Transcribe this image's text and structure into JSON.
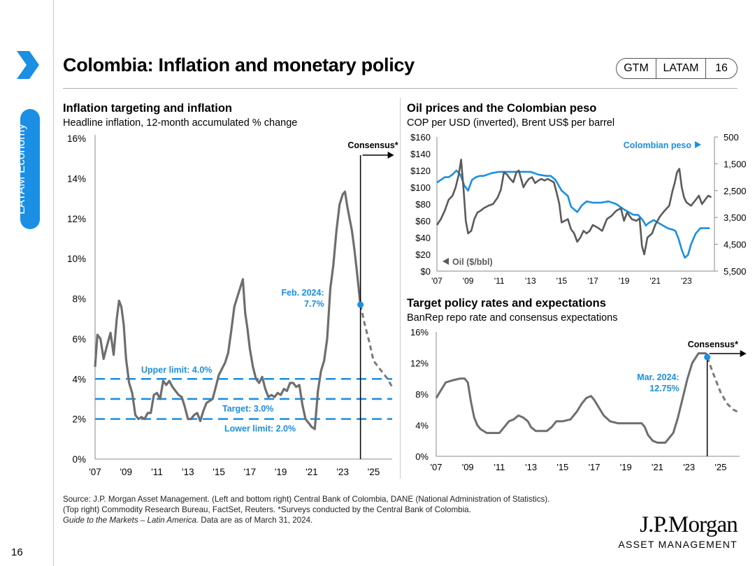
{
  "sidebar": {
    "label": "LATAM Economy"
  },
  "header": {
    "title": "Colombia: Inflation and monetary policy",
    "badge": [
      "GTM",
      "LATAM",
      "16"
    ]
  },
  "colors": {
    "accent": "#1a8fe3",
    "series_gray": "#6e6e6e",
    "series_blue": "#1a8fe3"
  },
  "page_number": "16",
  "source_lines": [
    "Source: J.P. Morgan Asset Management. (Left and bottom right) Central Bank of Colombia, DANE (National Administration of Statistics).",
    "(Top right) Commodity Research Bureau, FactSet, Reuters. *Surveys conducted by the Central Bank of Colombia."
  ],
  "source_italic": "Guide to the Markets – Latin America.",
  "source_tail": " Data are as of March 31, 2024.",
  "logo": {
    "line1": "J.P.Morgan",
    "line2": "ASSET MANAGEMENT"
  },
  "chart_data": [
    {
      "type": "line",
      "title": "Inflation targeting and inflation",
      "subtitle": "Headline inflation, 12-month accumulated % change",
      "ylim": [
        0,
        16
      ],
      "xlim": [
        2007,
        2026.2
      ],
      "yticks": [
        0,
        2,
        4,
        6,
        8,
        10,
        12,
        14,
        16
      ],
      "ytick_labels": [
        "0%",
        "2%",
        "4%",
        "6%",
        "8%",
        "10%",
        "12%",
        "14%",
        "16%"
      ],
      "xticks": [
        2007,
        2009,
        2011,
        2013,
        2015,
        2017,
        2019,
        2021,
        2023,
        2025
      ],
      "xtick_labels": [
        "'07",
        "'09",
        "'11",
        "'13",
        "'15",
        "'17",
        "'19",
        "'21",
        "'23",
        "'25"
      ],
      "series": [
        {
          "name": "Headline inflation",
          "x": [
            2007.0,
            2007.15,
            2007.35,
            2007.55,
            2007.75,
            2008.0,
            2008.2,
            2008.4,
            2008.55,
            2008.7,
            2008.85,
            2009.0,
            2009.2,
            2009.4,
            2009.6,
            2009.8,
            2010.0,
            2010.2,
            2010.4,
            2010.6,
            2010.8,
            2011.0,
            2011.2,
            2011.4,
            2011.6,
            2011.8,
            2012.0,
            2012.2,
            2012.4,
            2012.6,
            2012.8,
            2013.0,
            2013.2,
            2013.4,
            2013.6,
            2013.8,
            2014.0,
            2014.2,
            2014.4,
            2014.6,
            2014.8,
            2015.0,
            2015.2,
            2015.4,
            2015.6,
            2015.8,
            2016.0,
            2016.2,
            2016.4,
            2016.55,
            2016.7,
            2016.85,
            2017.0,
            2017.2,
            2017.4,
            2017.6,
            2017.8,
            2018.0,
            2018.2,
            2018.4,
            2018.6,
            2018.8,
            2019.0,
            2019.2,
            2019.4,
            2019.6,
            2019.8,
            2020.0,
            2020.2,
            2020.4,
            2020.6,
            2020.8,
            2021.0,
            2021.2,
            2021.4,
            2021.6,
            2021.8,
            2022.0,
            2022.2,
            2022.4,
            2022.6,
            2022.8,
            2023.0,
            2023.15,
            2023.3,
            2023.45,
            2023.6,
            2023.75,
            2023.9,
            2024.05,
            2024.15
          ],
          "y": [
            4.6,
            6.2,
            6.0,
            5.0,
            5.6,
            6.3,
            5.2,
            7.0,
            7.9,
            7.6,
            6.7,
            5.0,
            3.8,
            3.3,
            2.2,
            2.0,
            2.1,
            2.0,
            2.3,
            2.3,
            3.2,
            3.3,
            3.0,
            3.9,
            3.7,
            3.9,
            3.6,
            3.4,
            3.2,
            3.1,
            2.6,
            2.0,
            2.0,
            2.2,
            2.3,
            1.9,
            2.4,
            2.8,
            2.9,
            3.0,
            3.6,
            4.2,
            4.5,
            4.8,
            5.3,
            6.4,
            7.6,
            8.1,
            8.6,
            8.97,
            7.3,
            6.5,
            5.5,
            4.6,
            4.0,
            3.8,
            4.1,
            3.5,
            3.1,
            3.2,
            3.1,
            3.3,
            3.2,
            3.5,
            3.4,
            3.8,
            3.8,
            3.6,
            3.7,
            2.7,
            2.0,
            1.8,
            1.6,
            1.5,
            3.4,
            4.4,
            4.9,
            6.0,
            8.5,
            9.7,
            11.4,
            12.7,
            13.2,
            13.34,
            12.6,
            12.0,
            11.4,
            10.5,
            9.5,
            8.4,
            7.7
          ]
        },
        {
          "name": "Consensus",
          "dashed": true,
          "x": [
            2024.15,
            2024.4,
            2024.7,
            2025.0,
            2025.3,
            2025.6,
            2025.9,
            2026.2
          ],
          "y": [
            7.7,
            6.8,
            5.9,
            4.9,
            4.6,
            4.3,
            4.0,
            3.6
          ]
        }
      ],
      "reference_lines": [
        {
          "label": "Upper limit: 4.0%",
          "value": 4.0
        },
        {
          "label": "Target: 3.0%",
          "value": 3.0
        },
        {
          "label": "Lower limit: 2.0%",
          "value": 2.0
        }
      ],
      "annotations": [
        {
          "text": "Feb. 2024:",
          "text2": "7.7%",
          "x": 2024.15,
          "y": 7.7
        },
        {
          "text": "Consensus*",
          "x": 2024.15
        }
      ]
    },
    {
      "type": "line",
      "title": "Oil prices and the Colombian peso",
      "subtitle": "COP per USD (inverted), Brent US$ per barrel",
      "xlim": [
        2007,
        2024.8
      ],
      "xticks": [
        2007,
        2009,
        2011,
        2013,
        2015,
        2017,
        2019,
        2021,
        2023
      ],
      "xtick_labels": [
        "'07",
        "'09",
        "'11",
        "'13",
        "'15",
        "'17",
        "'19",
        "'21",
        "'23"
      ],
      "ylim_left": [
        0,
        160
      ],
      "yticks_left_labels": [
        "$0",
        "$20",
        "$40",
        "$60",
        "$80",
        "$100",
        "$120",
        "$140",
        "$160"
      ],
      "ylim_right": [
        5500,
        500
      ],
      "yticks_right_labels": [
        "500",
        "1,500",
        "2,500",
        "3,500",
        "4,500",
        "5,500"
      ],
      "series": [
        {
          "name": "Oil ($/bbl)",
          "axis": "left",
          "x": [
            2007.0,
            2007.25,
            2007.5,
            2007.75,
            2008.0,
            2008.2,
            2008.4,
            2008.55,
            2008.7,
            2008.85,
            2009.0,
            2009.2,
            2009.4,
            2009.6,
            2009.8,
            2010.0,
            2010.3,
            2010.6,
            2010.9,
            2011.1,
            2011.3,
            2011.5,
            2011.7,
            2011.9,
            2012.1,
            2012.25,
            2012.4,
            2012.55,
            2012.7,
            2012.9,
            2013.1,
            2013.3,
            2013.5,
            2013.7,
            2013.9,
            2014.1,
            2014.3,
            2014.5,
            2014.7,
            2014.85,
            2015.0,
            2015.2,
            2015.4,
            2015.6,
            2015.8,
            2016.0,
            2016.2,
            2016.4,
            2016.6,
            2016.8,
            2017.0,
            2017.3,
            2017.6,
            2017.9,
            2018.2,
            2018.5,
            2018.8,
            2019.0,
            2019.2,
            2019.5,
            2019.8,
            2020.0,
            2020.15,
            2020.3,
            2020.5,
            2020.8,
            2021.0,
            2021.3,
            2021.6,
            2021.9,
            2022.1,
            2022.25,
            2022.4,
            2022.55,
            2022.7,
            2022.85,
            2023.0,
            2023.3,
            2023.6,
            2023.8,
            2024.0,
            2024.2,
            2024.4,
            2024.6
          ],
          "y": [
            55,
            62,
            72,
            85,
            90,
            100,
            115,
            133,
            100,
            60,
            45,
            48,
            62,
            70,
            72,
            75,
            78,
            80,
            88,
            97,
            118,
            115,
            110,
            106,
            118,
            120,
            110,
            100,
            105,
            110,
            112,
            105,
            108,
            110,
            108,
            110,
            108,
            106,
            92,
            80,
            58,
            60,
            62,
            50,
            45,
            35,
            40,
            48,
            45,
            48,
            55,
            52,
            48,
            62,
            66,
            72,
            75,
            60,
            70,
            62,
            60,
            63,
            30,
            20,
            40,
            45,
            55,
            65,
            72,
            78,
            95,
            105,
            118,
            122,
            100,
            88,
            82,
            78,
            85,
            90,
            80,
            85,
            90,
            88
          ]
        },
        {
          "name": "Colombian peso",
          "axis": "right",
          "x": [
            2007.0,
            2007.25,
            2007.5,
            2007.75,
            2008.0,
            2008.25,
            2008.5,
            2008.75,
            2009.0,
            2009.25,
            2009.5,
            2009.75,
            2010.0,
            2010.5,
            2011.0,
            2011.5,
            2012.0,
            2012.5,
            2013.0,
            2013.5,
            2014.0,
            2014.3,
            2014.6,
            2014.8,
            2015.0,
            2015.2,
            2015.4,
            2015.6,
            2015.8,
            2016.0,
            2016.3,
            2016.6,
            2017.0,
            2017.5,
            2018.0,
            2018.5,
            2019.0,
            2019.3,
            2019.6,
            2019.9,
            2020.2,
            2020.4,
            2020.6,
            2020.9,
            2021.2,
            2021.5,
            2021.8,
            2022.1,
            2022.3,
            2022.5,
            2022.7,
            2022.9,
            2023.1,
            2023.3,
            2023.6,
            2023.9,
            2024.2,
            2024.5
          ],
          "y": [
            2200,
            2100,
            2000,
            2000,
            1900,
            1750,
            1900,
            2300,
            2500,
            2100,
            2000,
            1950,
            1950,
            1850,
            1800,
            1800,
            1800,
            1800,
            1800,
            1900,
            1950,
            1950,
            2100,
            2300,
            2500,
            2600,
            2700,
            3100,
            3200,
            3300,
            3050,
            2900,
            2950,
            2950,
            2900,
            3000,
            3200,
            3300,
            3400,
            3400,
            3600,
            3800,
            3700,
            3600,
            3700,
            3800,
            3900,
            3950,
            4000,
            4300,
            4700,
            5000,
            4900,
            4500,
            4100,
            3900,
            3900,
            3900
          ]
        }
      ],
      "legend": [
        {
          "text": "Colombian peso",
          "axis": "right"
        },
        {
          "text": "Oil ($/bbl)",
          "axis": "left"
        }
      ]
    },
    {
      "type": "line",
      "title": "Target policy rates and expectations",
      "subtitle": "BanRep repo rate and consensus expectations",
      "ylim": [
        0,
        16
      ],
      "xlim": [
        2007,
        2026.2
      ],
      "yticks": [
        0,
        4,
        8,
        12,
        16
      ],
      "ytick_labels": [
        "0%",
        "4%",
        "8%",
        "12%",
        "16%"
      ],
      "xticks": [
        2007,
        2009,
        2011,
        2013,
        2015,
        2017,
        2019,
        2021,
        2023,
        2025
      ],
      "xtick_labels": [
        "'07",
        "'09",
        "'11",
        "'13",
        "'15",
        "'17",
        "'19",
        "'21",
        "'23",
        "'25"
      ],
      "series": [
        {
          "name": "BanRep repo rate",
          "x": [
            2007.0,
            2007.3,
            2007.6,
            2008.0,
            2008.5,
            2008.8,
            2009.0,
            2009.2,
            2009.4,
            2009.6,
            2009.8,
            2010.2,
            2010.6,
            2011.0,
            2011.3,
            2011.6,
            2011.9,
            2012.2,
            2012.5,
            2012.8,
            2013.0,
            2013.3,
            2013.6,
            2014.0,
            2014.3,
            2014.6,
            2015.0,
            2015.5,
            2015.9,
            2016.2,
            2016.5,
            2016.8,
            2017.0,
            2017.3,
            2017.6,
            2018.0,
            2018.5,
            2019.0,
            2019.5,
            2020.0,
            2020.2,
            2020.4,
            2020.7,
            2021.0,
            2021.5,
            2021.8,
            2022.0,
            2022.3,
            2022.6,
            2022.9,
            2023.2,
            2023.6,
            2024.05,
            2024.15
          ],
          "y": [
            7.5,
            8.5,
            9.5,
            9.75,
            10.0,
            10.0,
            9.5,
            7.0,
            5.0,
            4.0,
            3.5,
            3.0,
            3.0,
            3.0,
            3.75,
            4.5,
            4.75,
            5.25,
            5.0,
            4.5,
            3.75,
            3.25,
            3.25,
            3.25,
            3.75,
            4.5,
            4.5,
            4.75,
            5.75,
            6.75,
            7.5,
            7.75,
            7.25,
            6.25,
            5.25,
            4.5,
            4.25,
            4.25,
            4.25,
            4.25,
            3.75,
            2.75,
            2.0,
            1.75,
            1.75,
            2.5,
            3.0,
            5.0,
            7.5,
            10.0,
            12.0,
            13.25,
            13.25,
            12.75
          ]
        },
        {
          "name": "Consensus",
          "dashed": true,
          "x": [
            2024.15,
            2024.5,
            2025.0,
            2025.4,
            2025.8,
            2026.2
          ],
          "y": [
            12.75,
            10.8,
            8.2,
            6.8,
            6.0,
            5.6
          ]
        }
      ],
      "annotations": [
        {
          "text": "Mar. 2024:",
          "text2": "12.75%",
          "x": 2024.15,
          "y": 12.75
        },
        {
          "text": "Consensus*",
          "x": 2024.15
        }
      ]
    }
  ]
}
